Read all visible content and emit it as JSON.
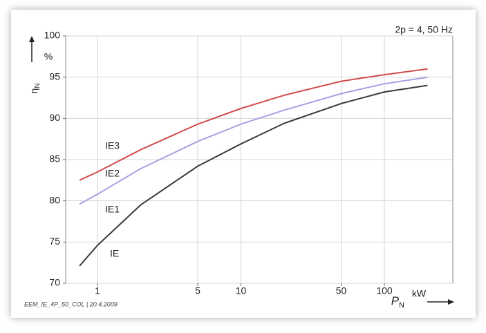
{
  "chart_data": {
    "type": "line",
    "title": "2p = 4, 50 Hz",
    "y_label": "η",
    "y_label_sub": "N",
    "y_unit": "%",
    "x_label": "P",
    "x_label_sub": "N",
    "x_unit": "kW",
    "footnote": "EEM_IE_4P_50_COL | 20.4.2009",
    "x_log": true,
    "grid": true,
    "xlim": [
      0.6,
      300
    ],
    "xticks": [
      1,
      5,
      10,
      50,
      100
    ],
    "ylim": [
      70,
      100
    ],
    "yticks": [
      70,
      75,
      80,
      85,
      90,
      95,
      100
    ],
    "x": [
      0.75,
      1,
      2,
      5,
      10,
      20,
      50,
      100,
      200
    ],
    "series": [
      {
        "name": "IE3",
        "color": "#d24b4b",
        "values": [
          82.5,
          83.5,
          86.2,
          89.3,
          91.2,
          92.8,
          94.5,
          95.3,
          96.0
        ]
      },
      {
        "name": "IE2",
        "color": "#a3a3e3",
        "values": [
          79.6,
          80.8,
          83.9,
          87.2,
          89.3,
          91.0,
          93.0,
          94.2,
          95.0
        ]
      },
      {
        "name": "IE1",
        "color": "#3a3a3a",
        "values": [
          72.1,
          74.6,
          79.5,
          84.2,
          86.9,
          89.4,
          91.8,
          93.2,
          94.0
        ]
      }
    ],
    "annotations": [
      "IE"
    ]
  }
}
